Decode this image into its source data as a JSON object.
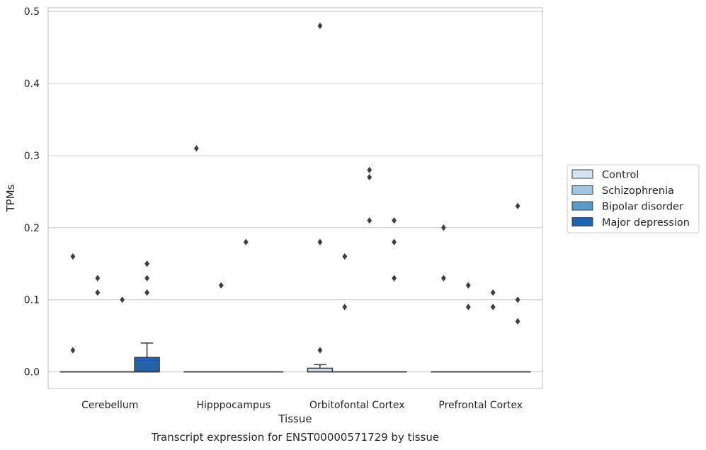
{
  "chart_data": {
    "type": "box",
    "title": "",
    "caption": "Transcript expression for ENST00000571729 by tissue",
    "xlabel": "Tissue",
    "ylabel": "TPMs",
    "ylim": [
      -0.023,
      0.505
    ],
    "yticks": [
      "0.0",
      "0.1",
      "0.2",
      "0.3",
      "0.4",
      "0.5"
    ],
    "grid": "horizontal",
    "legend_position": "right",
    "categories": [
      "Cerebellum",
      "Hipppocampus",
      "Orbitofontal Cortex",
      "Prefrontal Cortex"
    ],
    "series": [
      {
        "name": "Control",
        "color": "#d4e4f4",
        "boxes": [
          {
            "q1": 0,
            "median": 0,
            "q3": 0,
            "whisker_high": 0,
            "outliers": [
              0.16,
              0.03
            ]
          },
          {
            "q1": 0,
            "median": 0,
            "q3": 0,
            "whisker_high": 0,
            "outliers": [
              0.31
            ]
          },
          {
            "q1": 0,
            "median": 0,
            "q3": 0.005,
            "whisker_high": 0.01,
            "outliers": [
              0.48,
              0.18,
              0.03
            ]
          },
          {
            "q1": 0,
            "median": 0,
            "q3": 0,
            "whisker_high": 0,
            "outliers": [
              0.2,
              0.13
            ]
          }
        ]
      },
      {
        "name": "Schizophrenia",
        "color": "#a1c6df",
        "boxes": [
          {
            "q1": 0,
            "median": 0,
            "q3": 0,
            "whisker_high": 0,
            "outliers": [
              0.13,
              0.11
            ]
          },
          {
            "q1": 0,
            "median": 0,
            "q3": 0,
            "whisker_high": 0,
            "outliers": [
              0.12
            ]
          },
          {
            "q1": 0,
            "median": 0,
            "q3": 0,
            "whisker_high": 0,
            "outliers": [
              0.16,
              0.09
            ]
          },
          {
            "q1": 0,
            "median": 0,
            "q3": 0,
            "whisker_high": 0,
            "outliers": [
              0.12,
              0.09
            ]
          }
        ]
      },
      {
        "name": "Bipolar disorder",
        "color": "#5a9ac8",
        "boxes": [
          {
            "q1": 0,
            "median": 0,
            "q3": 0,
            "whisker_high": 0,
            "outliers": [
              0.1
            ]
          },
          {
            "q1": 0,
            "median": 0,
            "q3": 0,
            "whisker_high": 0,
            "outliers": [
              0.18
            ]
          },
          {
            "q1": 0,
            "median": 0,
            "q3": 0,
            "whisker_high": 0,
            "outliers": [
              0.28,
              0.27,
              0.21
            ]
          },
          {
            "q1": 0,
            "median": 0,
            "q3": 0,
            "whisker_high": 0,
            "outliers": [
              0.11,
              0.09
            ]
          }
        ]
      },
      {
        "name": "Major depression",
        "color": "#2463a8",
        "boxes": [
          {
            "q1": 0,
            "median": 0,
            "q3": 0.02,
            "whisker_high": 0.04,
            "outliers": [
              0.15,
              0.13,
              0.11
            ]
          },
          {
            "q1": 0,
            "median": 0,
            "q3": 0,
            "whisker_high": 0,
            "outliers": []
          },
          {
            "q1": 0,
            "median": 0,
            "q3": 0,
            "whisker_high": 0,
            "outliers": [
              0.21,
              0.18,
              0.13
            ]
          },
          {
            "q1": 0,
            "median": 0,
            "q3": 0,
            "whisker_high": 0,
            "outliers": [
              0.23,
              0.1,
              0.07
            ]
          }
        ]
      }
    ]
  }
}
